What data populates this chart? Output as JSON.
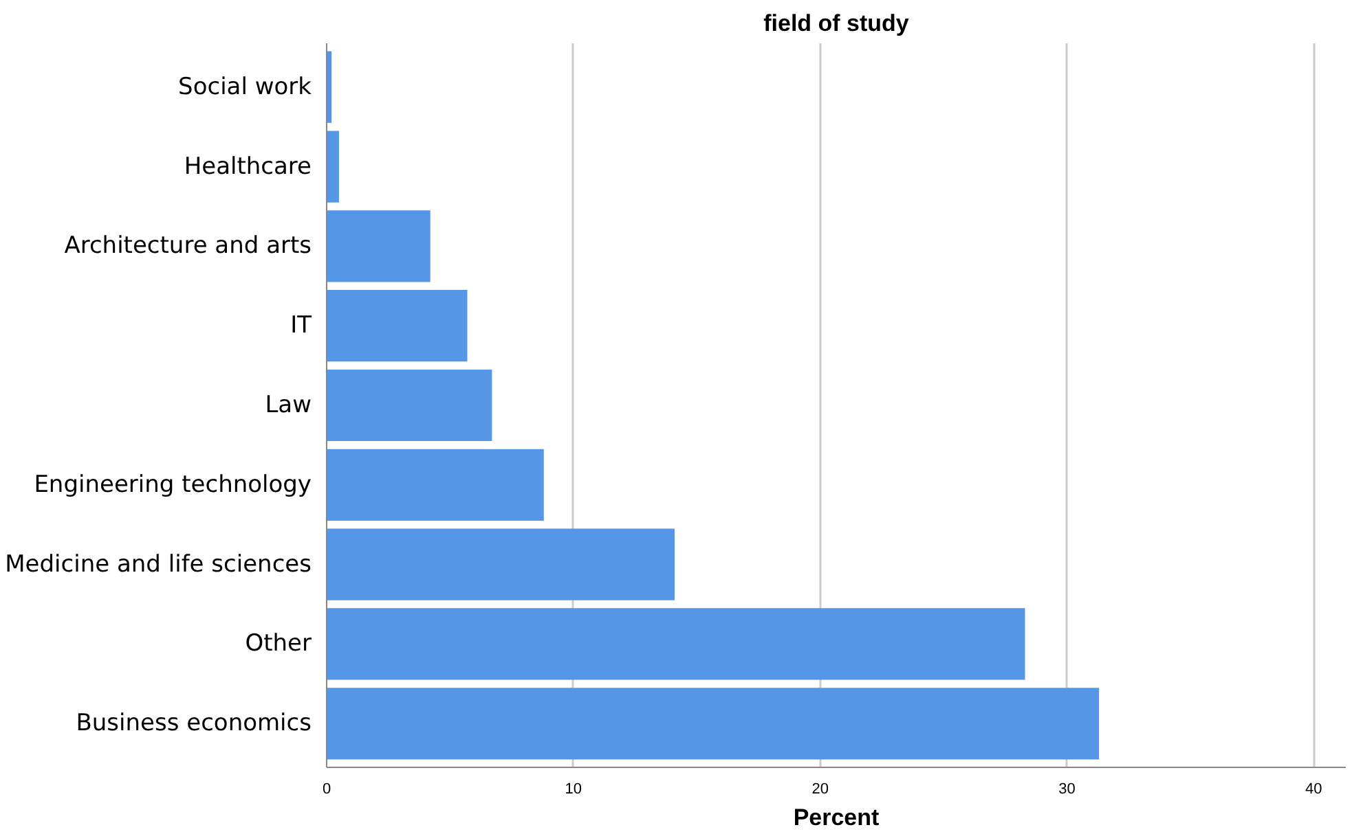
{
  "chart_data": {
    "type": "bar",
    "orientation": "horizontal",
    "title": "field of study",
    "xlabel": "Percent",
    "categories": [
      "Social work",
      "Healthcare",
      "Architecture and arts",
      "IT",
      "Law",
      "Engineering technology",
      "Medicine and life sciences",
      "Other",
      "Business economics"
    ],
    "values": [
      0.2,
      0.5,
      4.2,
      5.7,
      6.7,
      8.8,
      14.1,
      28.3,
      31.3
    ],
    "color": "#5596e6",
    "xlim": [
      0,
      41.3
    ],
    "xticks": [
      0,
      10,
      20,
      30,
      40
    ],
    "grid": "x"
  }
}
